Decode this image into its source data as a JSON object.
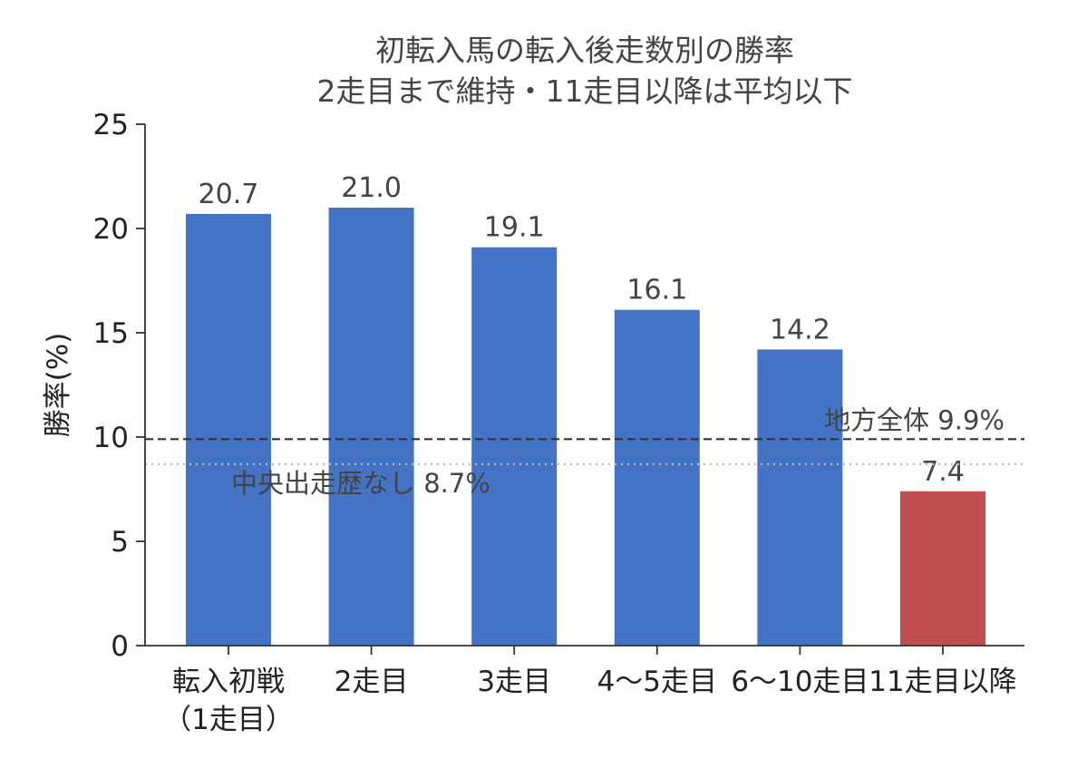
{
  "chart_data": {
    "type": "bar",
    "title": [
      "初転入馬の転入後走数別の勝率",
      "2走目まで維持・11走目以降は平均以下"
    ],
    "xlabel": "",
    "ylabel": "勝率(%)",
    "ylim": [
      0,
      25
    ],
    "yticks": [
      0,
      5,
      10,
      15,
      20,
      25
    ],
    "categories": [
      [
        "転入初戦",
        "（1走目）"
      ],
      [
        "2走目"
      ],
      [
        "3走目"
      ],
      [
        "4〜5走目"
      ],
      [
        "6〜10走目"
      ],
      [
        "11走目以降"
      ]
    ],
    "values": [
      20.7,
      21.0,
      19.1,
      16.1,
      14.2,
      7.4
    ],
    "value_labels": [
      "20.7",
      "21.0",
      "19.1",
      "16.1",
      "14.2",
      "7.4"
    ],
    "bar_colors": [
      "#4472c4",
      "#4472c4",
      "#4472c4",
      "#4472c4",
      "#4472c4",
      "#c0504d"
    ],
    "reference_lines": [
      {
        "label": "地方全体 9.9%",
        "value": 9.9,
        "style": "dashed",
        "color": "#333333"
      },
      {
        "label": "中央出走歴なし 8.7%",
        "value": 8.7,
        "style": "dotted",
        "color": "#bbbbbb"
      }
    ],
    "grid": false,
    "legend": "none"
  }
}
